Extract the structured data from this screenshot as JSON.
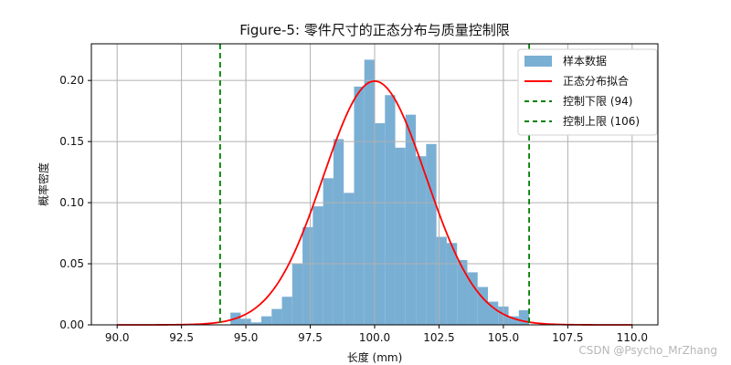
{
  "chart_data": {
    "type": "bar",
    "title": "Figure-5: 零件尺寸的正态分布与质量控制限",
    "xlabel": "长度 (mm)",
    "ylabel": "概率密度",
    "xlim": [
      89.0,
      111.0
    ],
    "ylim": [
      0.0,
      0.23
    ],
    "grid": true,
    "legend_position": "top-right",
    "x_ticks": [
      "90.0",
      "92.5",
      "95.0",
      "97.5",
      "100.0",
      "102.5",
      "105.0",
      "107.5",
      "110.0"
    ],
    "y_ticks": [
      "0.00",
      "0.05",
      "0.10",
      "0.15",
      "0.20"
    ],
    "histogram": {
      "name": "样本数据",
      "color": "#7aafd4",
      "bin_edges": [
        94.4,
        94.8,
        95.2,
        95.6,
        96.0,
        96.4,
        96.8,
        97.2,
        97.6,
        98.0,
        98.4,
        98.8,
        99.2,
        99.6,
        100.0,
        100.4,
        100.8,
        101.2,
        101.6,
        102.0,
        102.4,
        102.8,
        103.2,
        103.6,
        104.0,
        104.4,
        104.8,
        105.2,
        105.6,
        106.0
      ],
      "densities": [
        0.01,
        0.005,
        0.002,
        0.007,
        0.013,
        0.023,
        0.05,
        0.08,
        0.097,
        0.12,
        0.152,
        0.108,
        0.195,
        0.217,
        0.165,
        0.188,
        0.145,
        0.172,
        0.138,
        0.148,
        0.072,
        0.067,
        0.053,
        0.043,
        0.031,
        0.019,
        0.015,
        0.007,
        0.012
      ]
    },
    "normal_fit": {
      "name": "正态分布拟合",
      "mean": 100.0,
      "std_dev": 2.0,
      "color": "#ff0000"
    },
    "control_limits": [
      {
        "name": "控制下限 (94)",
        "value": 94,
        "color": "#008000"
      },
      {
        "name": "控制上限 (106)",
        "value": 106,
        "color": "#008000"
      }
    ],
    "legend": [
      "样本数据",
      "正态分布拟合",
      "控制下限 (94)",
      "控制上限 (106)"
    ]
  },
  "watermark": "CSDN @Psycho_MrZhang"
}
